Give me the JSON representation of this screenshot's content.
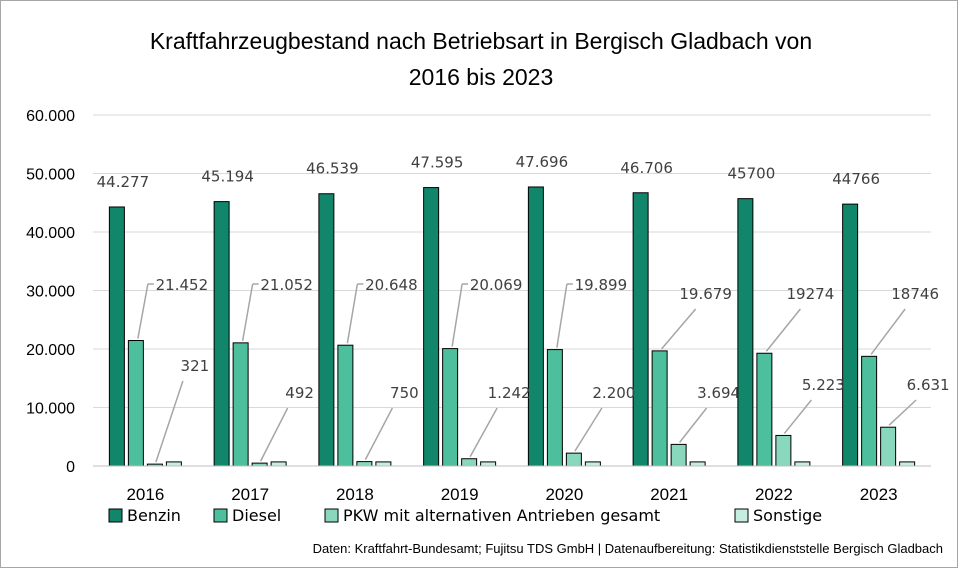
{
  "chart_data": {
    "type": "bar",
    "title": "Kraftfahrzeugbestand nach Betriebsart in Bergisch Gladbach von\n2016 bis 2023",
    "categories": [
      "2016",
      "2017",
      "2018",
      "2019",
      "2020",
      "2021",
      "2022",
      "2023"
    ],
    "y_ticks": [
      "60.000",
      "50.000",
      "40.000",
      "30.000",
      "20.000",
      "10.000",
      "0"
    ],
    "ylim": [
      0,
      60000
    ],
    "series": [
      {
        "name": "Benzin",
        "color": "#11866b",
        "values": [
          44277,
          45194,
          46539,
          47595,
          47696,
          46706,
          45700,
          44766
        ],
        "labels": [
          "44.277",
          "45.194",
          "46.539",
          "47.595",
          "47.696",
          "46.706",
          "45700",
          "44766"
        ]
      },
      {
        "name": "Diesel",
        "color": "#4dbf9c",
        "values": [
          21452,
          21052,
          20648,
          20069,
          19899,
          19679,
          19274,
          18746
        ],
        "labels": [
          "21.452",
          "21.052",
          "20.648",
          "20.069",
          "19.899",
          "19.679",
          "19274",
          "18746"
        ]
      },
      {
        "name": "PKW mit alternativen Antrieben gesamt",
        "color": "#89d7bd",
        "values": [
          321,
          492,
          750,
          1242,
          2200,
          3694,
          5223,
          6631
        ],
        "labels": [
          "321",
          "492",
          "750",
          "1.242",
          "2.200",
          "3.694",
          "5.223",
          "6.631"
        ]
      },
      {
        "name": "Sonstige",
        "color": "#c5ede0",
        "values": [
          700,
          700,
          700,
          700,
          700,
          700,
          700,
          700
        ],
        "labels": []
      }
    ],
    "legend_position": "bottom",
    "grid": true,
    "source": "Daten: Kraftfahrt-Bundesamt; Fujitsu TDS GmbH | Datenaufbereitung: Statistikdienststelle Bergisch Gladbach"
  }
}
